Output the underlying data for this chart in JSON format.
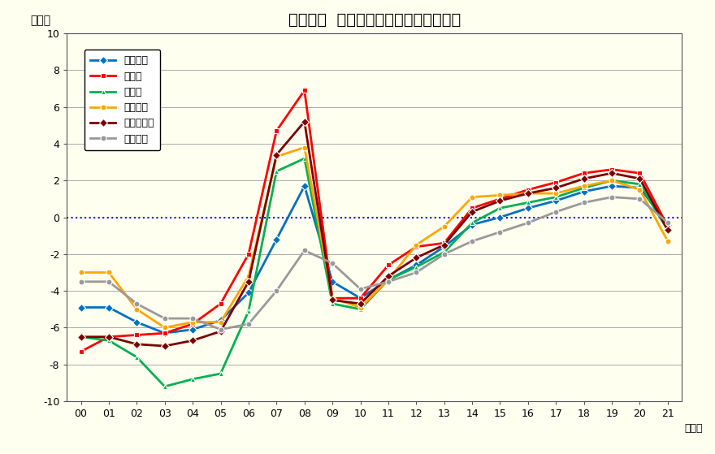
{
  "title": "公示価格  年別変動率の推移（全用途）",
  "ylabel": "（％）",
  "xlabel_suffix": "（年）",
  "years": [
    0,
    1,
    2,
    3,
    4,
    5,
    6,
    7,
    8,
    9,
    10,
    11,
    12,
    13,
    14,
    15,
    16,
    17,
    18,
    19,
    20,
    21
  ],
  "year_labels": [
    "00",
    "01",
    "02",
    "03",
    "04",
    "05",
    "06",
    "07",
    "08",
    "09",
    "10",
    "11",
    "12",
    "13",
    "14",
    "15",
    "16",
    "17",
    "18",
    "19",
    "20",
    "21"
  ],
  "ylim": [
    -10,
    10
  ],
  "yticks": [
    -10,
    -8,
    -6,
    -4,
    -2,
    0,
    2,
    4,
    6,
    8,
    10
  ],
  "series": [
    {
      "name": "全国平均",
      "color": "#0070C0",
      "marker": "D",
      "markersize": 5,
      "linewidth": 2.0,
      "values": [
        -4.9,
        -4.9,
        -5.7,
        -6.3,
        -6.1,
        -5.6,
        -4.1,
        -1.2,
        1.7,
        -3.5,
        -4.4,
        -3.4,
        -2.6,
        -1.6,
        -0.4,
        0.0,
        0.5,
        0.9,
        1.4,
        1.7,
        1.6,
        -0.4
      ]
    },
    {
      "name": "東京圈",
      "color": "#FF0000",
      "marker": "s",
      "markersize": 5,
      "linewidth": 2.0,
      "values": [
        -7.3,
        -6.5,
        -6.4,
        -6.3,
        -5.8,
        -4.7,
        -2.0,
        4.7,
        6.9,
        -4.4,
        -4.4,
        -2.6,
        -1.6,
        -1.4,
        0.5,
        1.0,
        1.5,
        1.9,
        2.4,
        2.6,
        2.4,
        -0.5
      ]
    },
    {
      "name": "大阪圈",
      "color": "#00B050",
      "marker": "^",
      "markersize": 5,
      "linewidth": 2.0,
      "values": [
        -6.5,
        -6.7,
        -7.6,
        -9.2,
        -8.8,
        -8.5,
        -5.1,
        2.5,
        3.2,
        -4.7,
        -5.0,
        -3.4,
        -2.7,
        -1.9,
        -0.3,
        0.5,
        0.8,
        1.1,
        1.6,
        2.0,
        1.8,
        -0.7
      ]
    },
    {
      "name": "名古屋圈",
      "color": "#FFA500",
      "marker": "o",
      "markersize": 5,
      "linewidth": 2.0,
      "values": [
        -3.0,
        -3.0,
        -5.0,
        -6.0,
        -5.7,
        -5.7,
        -3.2,
        3.3,
        3.8,
        -4.4,
        -4.9,
        -3.4,
        -1.5,
        -0.5,
        1.1,
        1.2,
        1.3,
        1.3,
        1.7,
        2.0,
        1.5,
        -1.3
      ]
    },
    {
      "name": "三大都市圈",
      "color": "#7B0000",
      "marker": "D",
      "markersize": 5,
      "linewidth": 2.0,
      "values": [
        -6.5,
        -6.5,
        -6.9,
        -7.0,
        -6.7,
        -6.2,
        -3.5,
        3.4,
        5.2,
        -4.5,
        -4.7,
        -3.2,
        -2.2,
        -1.5,
        0.3,
        0.9,
        1.3,
        1.6,
        2.1,
        2.4,
        2.1,
        -0.7
      ]
    },
    {
      "name": "地方平均",
      "color": "#999999",
      "marker": "o",
      "markersize": 5,
      "linewidth": 2.0,
      "values": [
        -3.5,
        -3.5,
        -4.7,
        -5.5,
        -5.5,
        -6.1,
        -5.8,
        -4.0,
        -1.8,
        -2.5,
        -3.9,
        -3.5,
        -3.0,
        -2.0,
        -1.3,
        -0.8,
        -0.3,
        0.3,
        0.8,
        1.1,
        1.0,
        -0.3
      ]
    }
  ],
  "background_color": "#FFFFF0",
  "plot_bg_color": "#FFFFF0",
  "grid_color": "#AAAAAA",
  "zero_line_color": "#0000FF",
  "title_fontsize": 14,
  "legend_fontsize": 9
}
